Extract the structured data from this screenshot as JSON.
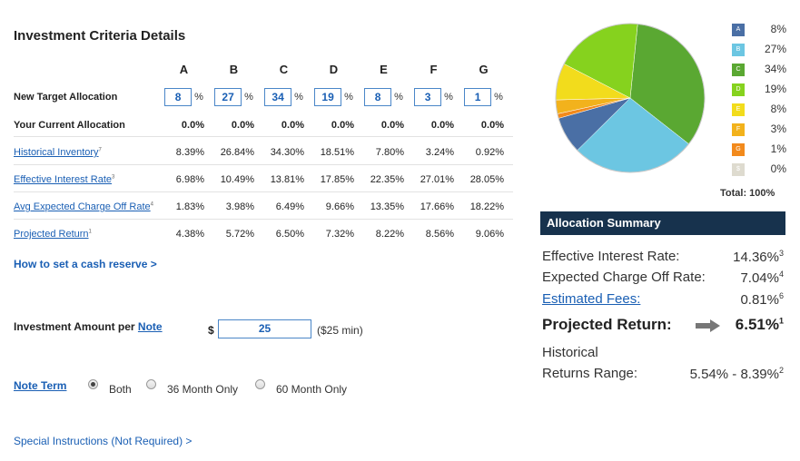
{
  "page": {
    "title": "Investment Criteria Details"
  },
  "criteria": {
    "columns": [
      "A",
      "B",
      "C",
      "D",
      "E",
      "F",
      "G"
    ],
    "target_label": "New Target Allocation",
    "target_values": [
      "8",
      "27",
      "34",
      "19",
      "8",
      "3",
      "1"
    ],
    "percent_sign": "%",
    "current_label": "Your Current Allocation",
    "current_values": [
      "0.0%",
      "0.0%",
      "0.0%",
      "0.0%",
      "0.0%",
      "0.0%",
      "0.0%"
    ],
    "rows": [
      {
        "label": "Historical Inventory",
        "sup": "7",
        "values": [
          "8.39%",
          "26.84%",
          "34.30%",
          "18.51%",
          "7.80%",
          "3.24%",
          "0.92%"
        ]
      },
      {
        "label": "Effective Interest Rate",
        "sup": "3",
        "values": [
          "6.98%",
          "10.49%",
          "13.81%",
          "17.85%",
          "22.35%",
          "27.01%",
          "28.05%"
        ]
      },
      {
        "label": "Avg Expected Charge Off Rate",
        "sup": "4",
        "values": [
          "1.83%",
          "3.98%",
          "6.49%",
          "9.66%",
          "13.35%",
          "17.66%",
          "18.22%"
        ]
      },
      {
        "label": "Projected Return",
        "sup": "1",
        "values": [
          "4.38%",
          "5.72%",
          "6.50%",
          "7.32%",
          "8.22%",
          "8.56%",
          "9.06%"
        ]
      }
    ]
  },
  "cash_reserve_link": "How to set a cash reserve >",
  "investment": {
    "label": "Investment Amount per",
    "note_link": "Note",
    "currency": "$",
    "value": "25",
    "min": "($25 min)"
  },
  "note_term": {
    "label": "Note Term",
    "options": [
      "Both",
      "36 Month Only",
      "60 Month Only"
    ],
    "selected": "Both"
  },
  "special_instructions": "Special Instructions (Not Required) >",
  "allocation_chart": {
    "legend": [
      {
        "code": "A",
        "value": "8%",
        "color": "#4a6fa5"
      },
      {
        "code": "B",
        "value": "27%",
        "color": "#6cc6e2"
      },
      {
        "code": "C",
        "value": "34%",
        "color": "#5aa832"
      },
      {
        "code": "D",
        "value": "19%",
        "color": "#86d21e"
      },
      {
        "code": "E",
        "value": "8%",
        "color": "#f2dc1c"
      },
      {
        "code": "F",
        "value": "3%",
        "color": "#f2b21c"
      },
      {
        "code": "G",
        "value": "1%",
        "color": "#f28a1c"
      },
      {
        "code": "$",
        "value": "0%",
        "color": "#dedbcf"
      }
    ],
    "total": "Total: 100%"
  },
  "summary": {
    "header": "Allocation Summary",
    "effective_interest_label": "Effective Interest Rate:",
    "effective_interest_value": "14.36%",
    "effective_interest_sup": "3",
    "charge_off_label": "Expected Charge Off Rate:",
    "charge_off_value": "7.04%",
    "charge_off_sup": "4",
    "fees_label": "Estimated Fees:",
    "fees_value": "0.81%",
    "fees_sup": "6",
    "projected_label": "Projected Return:",
    "projected_value": "6.51%",
    "projected_sup": "1",
    "historical_label_1": "Historical",
    "historical_label_2": "Returns Range:",
    "historical_value": "5.54% - 8.39%",
    "historical_sup": "2"
  }
}
